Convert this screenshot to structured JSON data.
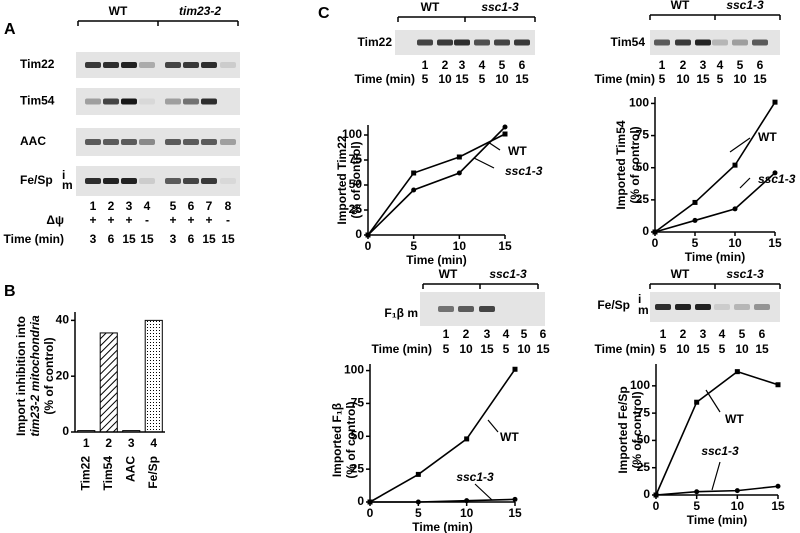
{
  "panels": {
    "a": "A",
    "b": "B",
    "c": "C"
  },
  "gel_a": {
    "groups": [
      "WT",
      "tim23-2"
    ],
    "rows": [
      "Tim22",
      "Tim54",
      "AAC",
      "Fe/Sp"
    ],
    "band_labels": [
      "i",
      "m"
    ],
    "lanes": [
      "1",
      "2",
      "3",
      "4",
      "5",
      "6",
      "7",
      "8"
    ],
    "psi_label": "Δψ",
    "psi": [
      "+",
      "+",
      "+",
      "-",
      "+",
      "+",
      "+",
      "-"
    ],
    "time_label": "Time (min)",
    "times": [
      "3",
      "6",
      "15",
      "15",
      "3",
      "6",
      "15",
      "15"
    ]
  },
  "gels_c": [
    {
      "label": "Tim22",
      "groups": [
        "WT",
        "ssc1-3"
      ],
      "lanes": [
        "1",
        "2",
        "3",
        "4",
        "5",
        "6"
      ],
      "time_label": "Time (min)",
      "times": [
        "5",
        "10",
        "15",
        "5",
        "10",
        "15"
      ]
    },
    {
      "label": "Tim54",
      "groups": [
        "WT",
        "ssc1-3"
      ],
      "lanes": [
        "1",
        "2",
        "3",
        "4",
        "5",
        "6"
      ],
      "time_label": "Time (min)",
      "times": [
        "5",
        "10",
        "15",
        "5",
        "10",
        "15"
      ]
    },
    {
      "label": "F₁β m",
      "groups": [
        "WT",
        "ssc1-3"
      ],
      "lanes": [
        "1",
        "2",
        "3",
        "4",
        "5",
        "6"
      ],
      "time_label": "Time (min)",
      "times": [
        "5",
        "10",
        "15",
        "5",
        "10",
        "15"
      ]
    },
    {
      "label": "Fe/Sp",
      "band_labels": [
        "i",
        "m"
      ],
      "groups": [
        "WT",
        "ssc1-3"
      ],
      "lanes": [
        "1",
        "2",
        "3",
        "4",
        "5",
        "6"
      ],
      "time_label": "Time (min)",
      "times": [
        "5",
        "10",
        "15",
        "5",
        "10",
        "15"
      ]
    }
  ],
  "chart_data": [
    {
      "type": "bar",
      "ylabel": [
        "Import inhibition into",
        "tim23-2 mitochondria",
        "(% of control)"
      ],
      "categories": [
        "Tim22",
        "Tim54",
        "AAC",
        "Fe/Sp"
      ],
      "category_numbers": [
        "1",
        "2",
        "3",
        "4"
      ],
      "values": [
        0.5,
        35.5,
        0.5,
        40
      ],
      "patterns": [
        "none",
        "hatch",
        "none",
        "dots"
      ],
      "color": "#000000",
      "ylim": [
        0,
        43
      ],
      "yticks": [
        0,
        20,
        40
      ]
    },
    {
      "type": "line",
      "ylabel": [
        "Imported Tim22",
        "(% of control)"
      ],
      "xlabel": "Time (min)",
      "x": [
        0,
        5,
        10,
        15
      ],
      "series": [
        {
          "name": "WT",
          "color": "#000000",
          "marker": "square",
          "values": [
            0,
            62,
            78,
            101
          ]
        },
        {
          "name": "ssc1-3",
          "color": "#000000",
          "marker": "circle",
          "values": [
            0,
            45,
            62,
            108
          ]
        }
      ],
      "xlim": [
        0,
        15
      ],
      "xticks": [
        0,
        5,
        10,
        15
      ],
      "ylim": [
        0,
        110
      ],
      "yticks": [
        0,
        25,
        50,
        75,
        100
      ]
    },
    {
      "type": "line",
      "ylabel": [
        "Imported Tim54",
        "(% of control)"
      ],
      "xlabel": "Time (min)",
      "x": [
        0,
        5,
        10,
        15
      ],
      "series": [
        {
          "name": "WT",
          "color": "#000000",
          "marker": "square",
          "values": [
            0,
            23,
            52,
            101
          ]
        },
        {
          "name": "ssc1-3",
          "color": "#000000",
          "marker": "circle",
          "values": [
            0,
            9,
            18,
            46
          ]
        }
      ],
      "xlim": [
        0,
        15
      ],
      "xticks": [
        0,
        5,
        10,
        15
      ],
      "ylim": [
        0,
        105
      ],
      "yticks": [
        0,
        25,
        50,
        75,
        100
      ]
    },
    {
      "type": "line",
      "ylabel": [
        "Imported F₁β",
        "(% of control)"
      ],
      "xlabel": "Time (min)",
      "x": [
        0,
        5,
        10,
        15
      ],
      "series": [
        {
          "name": "WT",
          "color": "#000000",
          "marker": "square",
          "values": [
            0,
            21,
            48,
            101
          ]
        },
        {
          "name": "ssc1-3",
          "color": "#000000",
          "marker": "circle",
          "values": [
            0,
            0,
            1,
            2
          ]
        }
      ],
      "xlim": [
        0,
        15
      ],
      "xticks": [
        0,
        5,
        10,
        15
      ],
      "ylim": [
        0,
        105
      ],
      "yticks": [
        0,
        25,
        50,
        75,
        100
      ]
    },
    {
      "type": "line",
      "ylabel": [
        "Imported Fe/Sp",
        "(% of control)"
      ],
      "xlabel": "Time (min)",
      "x": [
        0,
        5,
        10,
        15
      ],
      "series": [
        {
          "name": "WT",
          "color": "#000000",
          "marker": "square",
          "values": [
            0,
            85,
            113,
            101
          ]
        },
        {
          "name": "ssc1-3",
          "color": "#000000",
          "marker": "circle",
          "values": [
            0,
            3,
            4,
            8
          ]
        }
      ],
      "xlim": [
        0,
        15
      ],
      "xticks": [
        0,
        5,
        10,
        15
      ],
      "ylim": [
        0,
        120
      ],
      "yticks": [
        0,
        25,
        50,
        75,
        100
      ]
    }
  ]
}
